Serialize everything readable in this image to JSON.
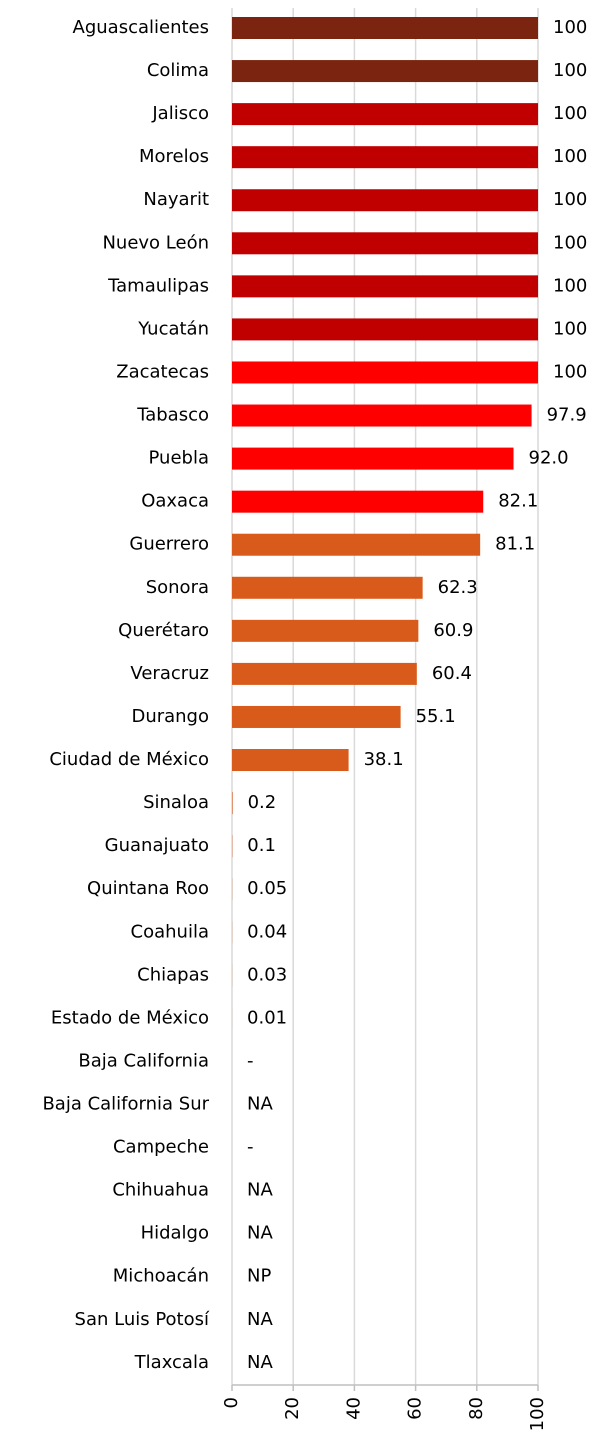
{
  "chart_data": {
    "type": "barh",
    "categories": [
      "Aguascalientes",
      "Colima",
      "Jalisco",
      "Morelos",
      "Nayarit",
      "Nuevo León",
      "Tamaulipas",
      "Yucatán",
      "Zacatecas",
      "Tabasco",
      "Puebla",
      "Oaxaca",
      "Guerrero",
      "Sonora",
      "Querétaro",
      "Veracruz",
      "Durango",
      "Ciudad de México",
      "Sinaloa",
      "Guanajuato",
      "Quintana Roo",
      "Coahuila",
      "Chiapas",
      "Estado de México",
      "Baja California",
      "Baja California Sur",
      "Campeche",
      "Chihuahua",
      "Hidalgo",
      "Michoacán",
      "San Luis Potosí",
      "Tlaxcala"
    ],
    "values": [
      100,
      100,
      100,
      100,
      100,
      100,
      100,
      100,
      100,
      97.9,
      92.0,
      82.1,
      81.1,
      62.3,
      60.9,
      60.4,
      55.1,
      38.1,
      0.2,
      0.1,
      0.05,
      0.04,
      0.03,
      0.01,
      null,
      null,
      null,
      null,
      null,
      null,
      null,
      null
    ],
    "value_labels": [
      "100",
      "100",
      "100",
      "100",
      "100",
      "100",
      "100",
      "100",
      "100",
      "97.9",
      "92.0",
      "82.1",
      "81.1",
      "62.3",
      "60.9",
      "60.4",
      "55.1",
      "38.1",
      "0.2",
      "0.1",
      "0.05",
      "0.04",
      "0.03",
      "0.01",
      "-",
      "NA",
      "-",
      "NA",
      "NA",
      "NP",
      "NA",
      "NA"
    ],
    "colors": [
      "#7b2511",
      "#7b2511",
      "#c00000",
      "#c00000",
      "#c00000",
      "#c00000",
      "#c00000",
      "#c00000",
      "#ff0000",
      "#ff0000",
      "#ff0000",
      "#ff0000",
      "#d95b1b",
      "#d95b1b",
      "#d95b1b",
      "#d95b1b",
      "#d95b1b",
      "#d95b1b",
      "#d95b1b",
      "#d95b1b",
      "#d95b1b",
      "#d95b1b",
      "#d95b1b",
      "#d95b1b",
      "#d95b1b",
      "#d95b1b",
      "#d95b1b",
      "#d95b1b",
      "#d95b1b",
      "#d95b1b",
      "#d95b1b",
      "#d95b1b"
    ],
    "xlim": [
      0,
      100
    ],
    "xticks": [
      0,
      20,
      40,
      60,
      80,
      100
    ],
    "grid": true
  }
}
